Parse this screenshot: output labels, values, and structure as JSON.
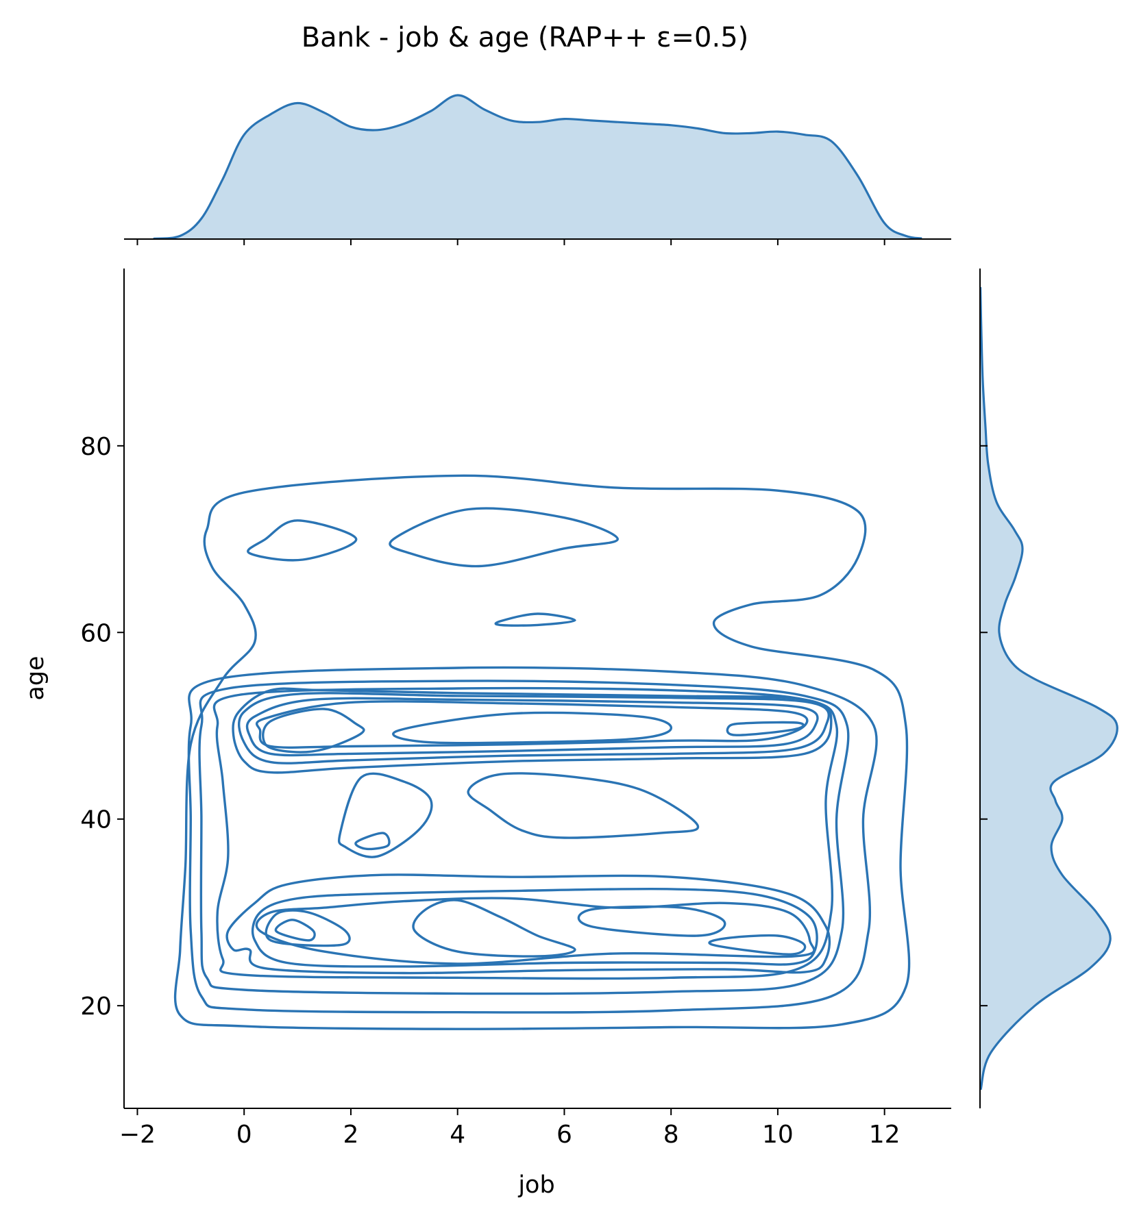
{
  "chart_data": {
    "type": "kde-joint",
    "title": "Bank - job & age (RAP++ ε=0.5)",
    "xlabel": "job",
    "ylabel": "age",
    "xlim": [
      -2.25,
      13.25
    ],
    "ylim": [
      9,
      99
    ],
    "xticks": [
      -2,
      0,
      2,
      4,
      6,
      8,
      10,
      12
    ],
    "xtick_labels": [
      "−2",
      "0",
      "2",
      "4",
      "6",
      "8",
      "10",
      "12"
    ],
    "yticks": [
      20,
      40,
      60,
      80
    ],
    "ytick_labels": [
      "20",
      "40",
      "60",
      "80"
    ],
    "grid": false,
    "color": "#2a74b4",
    "fill_color": "#c6dcec",
    "marginal_x": {
      "x": [
        -1.7,
        -1.2,
        -0.8,
        -0.4,
        0.0,
        0.5,
        1.0,
        1.5,
        2.0,
        2.5,
        3.0,
        3.5,
        4.0,
        4.5,
        5.0,
        5.5,
        6.0,
        6.5,
        7.0,
        7.5,
        8.0,
        8.5,
        9.0,
        9.5,
        10.0,
        10.5,
        11.0,
        11.5,
        12.0,
        12.4,
        12.7
      ],
      "density": [
        0.002,
        0.02,
        0.13,
        0.38,
        0.66,
        0.79,
        0.86,
        0.8,
        0.71,
        0.69,
        0.73,
        0.81,
        0.91,
        0.82,
        0.75,
        0.74,
        0.76,
        0.75,
        0.74,
        0.73,
        0.72,
        0.7,
        0.67,
        0.67,
        0.68,
        0.66,
        0.62,
        0.4,
        0.1,
        0.02,
        0.004
      ]
    },
    "marginal_y": {
      "y": [
        11,
        15,
        20,
        24,
        27,
        30,
        34,
        37,
        40,
        42,
        44,
        47,
        50,
        52,
        55,
        57,
        60,
        63,
        66,
        69,
        71,
        74,
        78,
        82,
        87,
        92,
        97
      ],
      "density": [
        0.005,
        0.08,
        0.4,
        0.8,
        0.95,
        0.85,
        0.6,
        0.52,
        0.6,
        0.55,
        0.54,
        0.9,
        1.0,
        0.85,
        0.4,
        0.22,
        0.14,
        0.18,
        0.26,
        0.31,
        0.25,
        0.12,
        0.06,
        0.04,
        0.02,
        0.01,
        0.003
      ]
    },
    "contours": [
      [
        [
          0,
          75
        ],
        [
          4,
          76.8
        ],
        [
          7,
          75.5
        ],
        [
          10,
          75.2
        ],
        [
          11.5,
          73
        ],
        [
          11.5,
          68
        ],
        [
          10.8,
          64
        ],
        [
          9.5,
          63
        ],
        [
          8.8,
          61
        ],
        [
          9.5,
          58.5
        ],
        [
          11.8,
          56
        ],
        [
          12.4,
          50
        ],
        [
          12.3,
          35
        ],
        [
          12.4,
          22
        ],
        [
          11.2,
          18
        ],
        [
          8,
          17.7
        ],
        [
          4,
          17.5
        ],
        [
          0,
          17.8
        ],
        [
          -1.2,
          19
        ],
        [
          -1.2,
          26
        ],
        [
          -1.1,
          35
        ],
        [
          -1.0,
          48
        ],
        [
          -0.4,
          55
        ],
        [
          0.2,
          59
        ],
        [
          0.0,
          63
        ],
        [
          -0.6,
          67
        ],
        [
          -0.7,
          71
        ]
      ],
      [
        [
          -0.5,
          55
        ],
        [
          4,
          56.2
        ],
        [
          8,
          55.8
        ],
        [
          10.5,
          54.3
        ],
        [
          11.8,
          50
        ],
        [
          11.6,
          40
        ],
        [
          11.7,
          28
        ],
        [
          11,
          21
        ],
        [
          8,
          19.5
        ],
        [
          4,
          19.3
        ],
        [
          0,
          19.6
        ],
        [
          -0.8,
          21
        ],
        [
          -1.0,
          28
        ],
        [
          -1.0,
          40
        ],
        [
          -1.0,
          50
        ]
      ],
      [
        [
          -0.3,
          54
        ],
        [
          4,
          54.8
        ],
        [
          8,
          54.4
        ],
        [
          10.5,
          53.2
        ],
        [
          11.3,
          50
        ],
        [
          11.1,
          40
        ],
        [
          11.2,
          28
        ],
        [
          10.5,
          22.5
        ],
        [
          8,
          21.5
        ],
        [
          4,
          21.3
        ],
        [
          0,
          21.7
        ],
        [
          -0.7,
          23
        ],
        [
          -0.8,
          28
        ],
        [
          -0.8,
          40
        ],
        [
          -0.8,
          50
        ]
      ],
      [
        [
          -0.1,
          53.3
        ],
        [
          4,
          54
        ],
        [
          8,
          53.8
        ],
        [
          10.5,
          52.8
        ],
        [
          11.1,
          50
        ],
        [
          10.9,
          42
        ],
        [
          11.0,
          30
        ],
        [
          10.4,
          24
        ],
        [
          8,
          23
        ],
        [
          4,
          23
        ],
        [
          0,
          23.3
        ],
        [
          -0.4,
          25
        ],
        [
          -0.5,
          30
        ],
        [
          -0.3,
          36
        ],
        [
          -0.4,
          44
        ],
        [
          -0.5,
          50
        ]
      ],
      [
        [
          -0.1,
          51.5
        ],
        [
          0.5,
          53.8
        ],
        [
          1.5,
          53.8
        ],
        [
          4,
          53.5
        ],
        [
          8,
          53.2
        ],
        [
          10.5,
          52.8
        ],
        [
          11.0,
          50.5
        ],
        [
          10.5,
          47
        ],
        [
          8,
          46.5
        ],
        [
          5,
          46.2
        ],
        [
          2,
          45.5
        ],
        [
          0.5,
          45
        ],
        [
          0,
          46.2
        ],
        [
          -0.2,
          49
        ]
      ],
      [
        [
          0,
          51.5
        ],
        [
          1,
          53.4
        ],
        [
          4,
          53.2
        ],
        [
          8,
          53
        ],
        [
          10.6,
          52.5
        ],
        [
          10.9,
          50
        ],
        [
          10.3,
          47.5
        ],
        [
          8,
          47
        ],
        [
          5,
          46.8
        ],
        [
          2,
          46.3
        ],
        [
          0.5,
          46.1
        ],
        [
          0,
          48.2
        ]
      ],
      [
        [
          0.2,
          51
        ],
        [
          1.3,
          52.8
        ],
        [
          4,
          52.8
        ],
        [
          8,
          52.5
        ],
        [
          10.4,
          52
        ],
        [
          10.7,
          50
        ],
        [
          10.1,
          48
        ],
        [
          8,
          47.7
        ],
        [
          5,
          47.3
        ],
        [
          2,
          47
        ],
        [
          0.5,
          47
        ],
        [
          0.1,
          49
        ]
      ],
      [
        [
          0.4,
          50.8
        ],
        [
          2,
          52.5
        ],
        [
          5,
          52.4
        ],
        [
          8,
          52
        ],
        [
          10.2,
          51.5
        ],
        [
          10.5,
          50
        ],
        [
          9.7,
          48.5
        ],
        [
          8,
          48.4
        ],
        [
          5,
          48
        ],
        [
          2,
          47.8
        ],
        [
          0.5,
          47.8
        ],
        [
          0.3,
          49.5
        ]
      ],
      [
        [
          0.5,
          50.5
        ],
        [
          1.5,
          51.8
        ],
        [
          2.1,
          50.2
        ],
        [
          2.2,
          49.2
        ],
        [
          1.5,
          47.5
        ],
        [
          0.9,
          47.2
        ],
        [
          0.4,
          48
        ]
      ],
      [
        [
          2.9,
          49.5
        ],
        [
          5,
          51.3
        ],
        [
          7.4,
          51
        ],
        [
          8,
          49.7
        ],
        [
          7.3,
          48.6
        ],
        [
          5,
          48.2
        ],
        [
          3.3,
          48.3
        ]
      ],
      [
        [
          9.2,
          49
        ],
        [
          10.3,
          49.6
        ],
        [
          10.4,
          50.3
        ],
        [
          9.5,
          50.3
        ],
        [
          9.1,
          50
        ]
      ],
      [
        [
          0.1,
          26
        ],
        [
          0.4,
          24
        ],
        [
          3,
          23.5
        ],
        [
          6,
          23.8
        ],
        [
          9,
          23.9
        ],
        [
          10.5,
          23.6
        ],
        [
          10.9,
          25
        ],
        [
          10.9,
          28.5
        ],
        [
          10.2,
          32
        ],
        [
          8,
          33.8
        ],
        [
          5,
          33.8
        ],
        [
          2.5,
          34
        ],
        [
          0.8,
          33
        ],
        [
          0.2,
          31
        ],
        [
          -0.3,
          28
        ],
        [
          -0.2,
          26
        ]
      ],
      [
        [
          0.2,
          27
        ],
        [
          0.8,
          24.6
        ],
        [
          3,
          24.2
        ],
        [
          6,
          24.6
        ],
        [
          9,
          24.6
        ],
        [
          10.3,
          24.5
        ],
        [
          10.7,
          26
        ],
        [
          10.6,
          29.5
        ],
        [
          9.7,
          31.8
        ],
        [
          8,
          32.5
        ],
        [
          5,
          32.3
        ],
        [
          2.5,
          32
        ],
        [
          1,
          31.5
        ],
        [
          0.3,
          30
        ]
      ],
      [
        [
          0.3,
          28
        ],
        [
          1.5,
          25.8
        ],
        [
          4,
          24.5
        ],
        [
          7,
          25.6
        ],
        [
          10.3,
          25.3
        ],
        [
          10.6,
          27
        ],
        [
          10.2,
          30
        ],
        [
          9,
          31
        ],
        [
          7,
          30.5
        ],
        [
          5,
          31.5
        ],
        [
          3,
          31.2
        ],
        [
          1.5,
          30.5
        ],
        [
          0.5,
          30
        ]
      ],
      [
        [
          0.5,
          27
        ],
        [
          1.8,
          26.5
        ],
        [
          1.9,
          28
        ],
        [
          1.2,
          30
        ],
        [
          0.6,
          29.8
        ]
      ],
      [
        [
          0.6,
          28
        ],
        [
          1.2,
          27
        ],
        [
          1.3,
          28
        ],
        [
          0.9,
          29.2
        ]
      ],
      [
        [
          3.2,
          28
        ],
        [
          4,
          25.8
        ],
        [
          5.5,
          25.3
        ],
        [
          6.2,
          26
        ],
        [
          5.5,
          27.5
        ],
        [
          4.8,
          29.5
        ],
        [
          4,
          31.3
        ],
        [
          3.4,
          30.3
        ]
      ],
      [
        [
          8.8,
          26.5
        ],
        [
          10.2,
          25.5
        ],
        [
          10.5,
          26.5
        ],
        [
          10.0,
          27.5
        ],
        [
          9.0,
          27.2
        ]
      ],
      [
        [
          6.5,
          28.5
        ],
        [
          8.5,
          27.5
        ],
        [
          9.0,
          29
        ],
        [
          8.2,
          30.5
        ],
        [
          6.5,
          30.3
        ]
      ],
      [
        [
          1.8,
          38.5
        ],
        [
          2.2,
          44.5
        ],
        [
          3.0,
          44
        ],
        [
          3.5,
          42
        ],
        [
          3.3,
          39
        ],
        [
          2.5,
          36
        ],
        [
          1.9,
          37
        ]
      ],
      [
        [
          2.1,
          37.5
        ],
        [
          2.6,
          38.5
        ],
        [
          2.7,
          37.2
        ],
        [
          2.3,
          36.8
        ]
      ],
      [
        [
          4.2,
          43
        ],
        [
          4.8,
          44.8
        ],
        [
          6.2,
          44.5
        ],
        [
          7.5,
          43
        ],
        [
          8.5,
          39.3
        ],
        [
          7.8,
          38.5
        ],
        [
          6,
          38
        ],
        [
          5.2,
          38.8
        ],
        [
          4.6,
          41
        ]
      ],
      [
        [
          0.4,
          70
        ],
        [
          1,
          72
        ],
        [
          2.1,
          70
        ],
        [
          1.1,
          67.8
        ],
        [
          0.1,
          68.5
        ]
      ],
      [
        [
          2.8,
          70
        ],
        [
          4.2,
          73.2
        ],
        [
          6,
          72.3
        ],
        [
          7,
          70
        ],
        [
          6,
          69
        ],
        [
          4.4,
          67.1
        ],
        [
          3.1,
          68.5
        ]
      ],
      [
        [
          4.8,
          61.2
        ],
        [
          5.5,
          62
        ],
        [
          6.2,
          61.3
        ],
        [
          5.5,
          60.8
        ],
        [
          4.8,
          60.8
        ]
      ]
    ]
  }
}
